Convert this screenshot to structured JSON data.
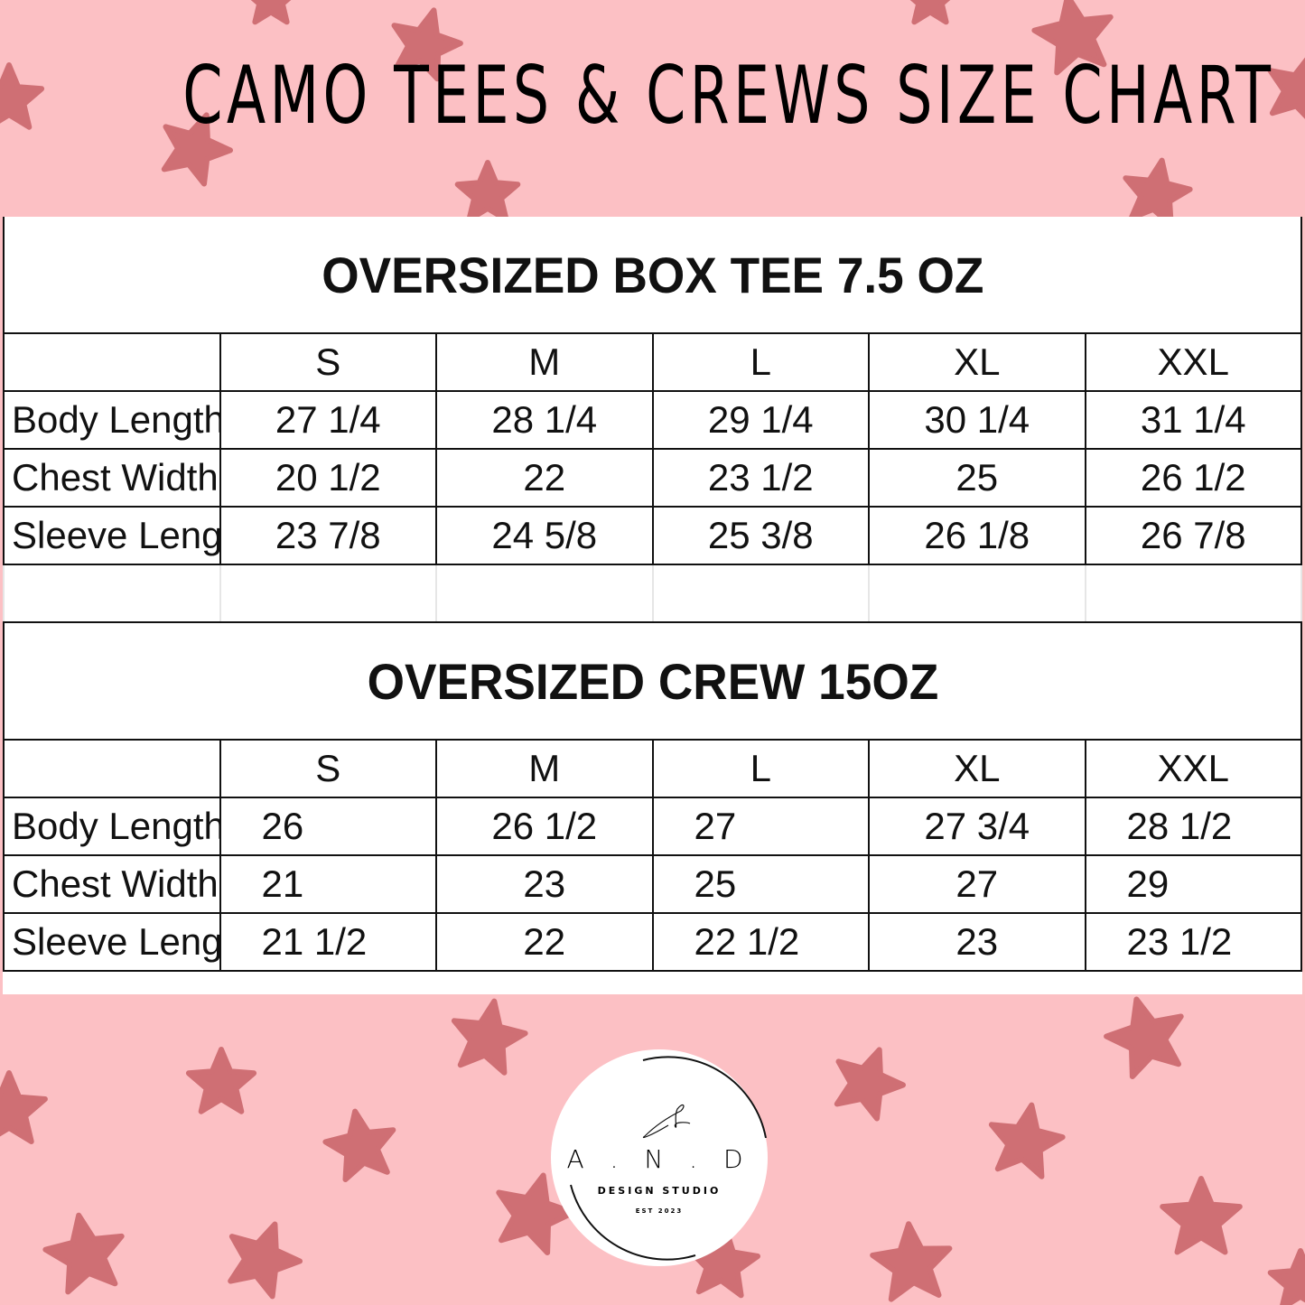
{
  "title": "CAMO TEES & CREWS SIZE CHART",
  "colors": {
    "background": "#fcc0c4",
    "stars": "#cf6f74",
    "table_border": "#111111"
  },
  "tables": [
    {
      "title": "OVERSIZED BOX TEE 7.5 OZ",
      "sizes": [
        "S",
        "M",
        "L",
        "XL",
        "XXL"
      ],
      "rows": [
        {
          "label": "Body Length",
          "values": [
            "27 1/4",
            "28 1/4",
            "29 1/4",
            "30 1/4",
            "31 1/4"
          ]
        },
        {
          "label": "Chest Width",
          "values": [
            "20 1/2",
            "22",
            "23 1/2",
            "25",
            "26 1/2"
          ]
        },
        {
          "label": "Sleeve Length",
          "values": [
            "23 7/8",
            "24 5/8",
            "25 3/8",
            "26 1/8",
            "26 7/8"
          ]
        }
      ]
    },
    {
      "title": "OVERSIZED CREW 15OZ",
      "sizes": [
        "S",
        "M",
        "L",
        "XL",
        "XXL"
      ],
      "rows": [
        {
          "label": "Body Length",
          "values": [
            "26",
            "26 1/2",
            "27",
            "27 3/4",
            "28 1/2"
          ]
        },
        {
          "label": "Chest Width",
          "values": [
            "21",
            "23",
            "25",
            "27",
            "29"
          ]
        },
        {
          "label": "Sleeve Length",
          "values": [
            "21 1/2",
            "22",
            "22 1/2",
            "23",
            "23 1/2"
          ]
        }
      ]
    }
  ],
  "logo": {
    "name": "A . N . D",
    "subtitle": "DESIGN STUDIO",
    "est": "EST 2023"
  }
}
